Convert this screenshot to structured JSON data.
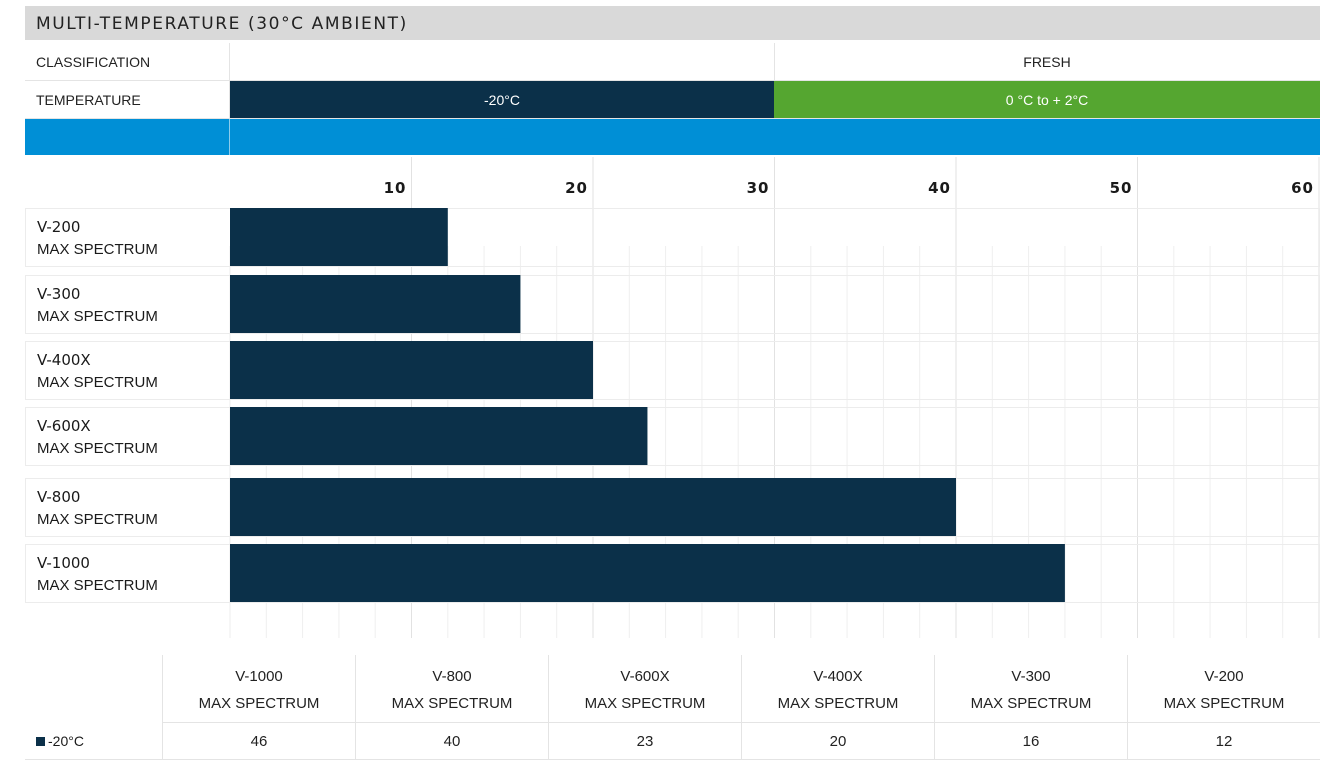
{
  "title": "MULTI-TEMPERATURE (30°C AMBIENT)",
  "classification": {
    "label": "CLASSIFICATION",
    "fresh": "FRESH"
  },
  "temperature": {
    "label": "TEMPERATURE",
    "frozen": "-20°C",
    "fresh": "0 °C to + 2°C"
  },
  "colors": {
    "bar": "#0b3049",
    "fresh_green": "#55a630",
    "strip_blue": "#008fd6",
    "header_gray": "#d9d9d9"
  },
  "chart_data": {
    "type": "bar",
    "orientation": "horizontal",
    "categories": [
      [
        "V-200",
        "MAX SPECTRUM"
      ],
      [
        "V-300",
        "MAX SPECTRUM"
      ],
      [
        "V-400X",
        "MAX SPECTRUM"
      ],
      [
        "V-600X",
        "MAX SPECTRUM"
      ],
      [
        "V-800",
        "MAX SPECTRUM"
      ],
      [
        "V-1000",
        "MAX SPECTRUM"
      ]
    ],
    "series": [
      {
        "name": "-20°C",
        "values": [
          12,
          16,
          20,
          23,
          40,
          46
        ]
      }
    ],
    "xlim": [
      0,
      60
    ],
    "xticks": [
      10,
      20,
      30,
      40,
      50,
      60
    ],
    "grid": true
  },
  "table": {
    "columns": [
      [
        "V-1000",
        "MAX SPECTRUM"
      ],
      [
        "V-800",
        "MAX SPECTRUM"
      ],
      [
        "V-600X",
        "MAX SPECTRUM"
      ],
      [
        "V-400X",
        "MAX SPECTRUM"
      ],
      [
        "V-300",
        "MAX SPECTRUM"
      ],
      [
        "V-200",
        "MAX SPECTRUM"
      ]
    ],
    "legend_label": "-20°C",
    "values": [
      "46",
      "40",
      "23",
      "20",
      "16",
      "12"
    ]
  }
}
